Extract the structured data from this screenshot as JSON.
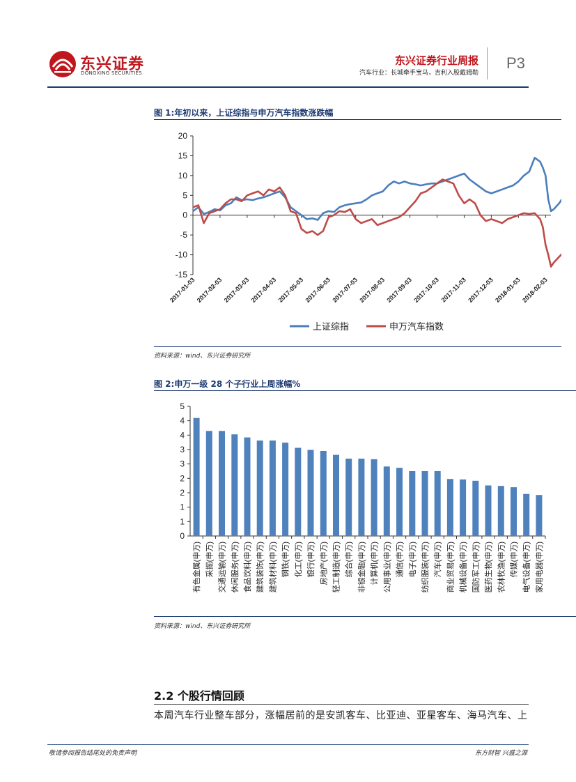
{
  "header": {
    "logo_cn": "东兴证券",
    "logo_en": "DONGXING SECURITIES",
    "report_title": "东兴证券行业周报",
    "report_subtitle": "汽车行业：长城牵手宝马，吉利入股戴姆勒",
    "page_number": "P3"
  },
  "figure1": {
    "title": "图 1:年初以来，上证综指与申万汽车指数涨跌幅",
    "source": "资料来源：wind、东兴证券研究所"
  },
  "figure2": {
    "title": "图 2:申万一级 28 个子行业上周涨幅%",
    "source": "资料来源：wind、东兴证券研究所"
  },
  "section": {
    "title": "2.2 个股行情回顾",
    "body": "本周汽车行业整车部分，涨幅居前的是安凯客车、比亚迪、亚星客车、海马汽车、上"
  },
  "footer": {
    "left": "敬请参阅报告结尾处的免责声明",
    "right": "东方财智 兴盛之源"
  },
  "colors": {
    "brand_red": "#c0161d",
    "navy": "#1f3b73",
    "series_blue": "#4a7ebb",
    "series_red": "#be4b48",
    "bar_blue": "#4f81bd"
  },
  "chart_data": [
    {
      "type": "line",
      "x_ticks": [
        "2017-01-03",
        "2017-02-03",
        "2017-03-03",
        "2017-04-03",
        "2017-05-03",
        "2017-06-03",
        "2017-07-03",
        "2017-08-03",
        "2017-09-03",
        "2017-10-03",
        "2017-11-03",
        "2017-12-03",
        "2018-01-03",
        "2018-02-03"
      ],
      "ylim": [
        -15,
        20
      ],
      "y_ticks": [
        20,
        15,
        10,
        5,
        0,
        -5,
        -10,
        -15
      ],
      "legend": "bottom",
      "series": [
        {
          "name": "上证综指",
          "color": "#4a7ebb",
          "points": [
            [
              0,
              1
            ],
            [
              0.2,
              2
            ],
            [
              0.4,
              0.3
            ],
            [
              0.6,
              0.8
            ],
            [
              0.8,
              1.5
            ],
            [
              1.0,
              1.2
            ],
            [
              1.2,
              2.5
            ],
            [
              1.4,
              3.0
            ],
            [
              1.6,
              4.5
            ],
            [
              1.8,
              3.8
            ],
            [
              2.0,
              4.0
            ],
            [
              2.2,
              3.8
            ],
            [
              2.4,
              4.2
            ],
            [
              2.6,
              4.5
            ],
            [
              2.8,
              5.0
            ],
            [
              3.0,
              5.5
            ],
            [
              3.2,
              6.0
            ],
            [
              3.4,
              4.5
            ],
            [
              3.6,
              2.0
            ],
            [
              3.8,
              1.0
            ],
            [
              4.0,
              0.0
            ],
            [
              4.2,
              -1.0
            ],
            [
              4.4,
              -0.8
            ],
            [
              4.6,
              -1.2
            ],
            [
              4.8,
              0.5
            ],
            [
              5.0,
              1.0
            ],
            [
              5.2,
              0.8
            ],
            [
              5.4,
              2.0
            ],
            [
              5.6,
              2.5
            ],
            [
              5.8,
              2.8
            ],
            [
              6.0,
              3.0
            ],
            [
              6.2,
              3.2
            ],
            [
              6.4,
              4.0
            ],
            [
              6.6,
              5.0
            ],
            [
              6.8,
              5.5
            ],
            [
              7.0,
              6.0
            ],
            [
              7.2,
              7.5
            ],
            [
              7.4,
              8.5
            ],
            [
              7.6,
              8.0
            ],
            [
              7.8,
              8.5
            ],
            [
              8.0,
              8.0
            ],
            [
              8.2,
              7.8
            ],
            [
              8.4,
              7.5
            ],
            [
              8.6,
              7.8
            ],
            [
              8.8,
              8.0
            ],
            [
              9.0,
              8.0
            ],
            [
              9.2,
              8.5
            ],
            [
              9.4,
              9.0
            ],
            [
              9.6,
              9.5
            ],
            [
              9.8,
              10.0
            ],
            [
              10.0,
              10.5
            ],
            [
              10.2,
              9.0
            ],
            [
              10.4,
              8.0
            ],
            [
              10.6,
              7.0
            ],
            [
              10.8,
              6.0
            ],
            [
              11.0,
              5.5
            ],
            [
              11.2,
              6.0
            ],
            [
              11.4,
              6.5
            ],
            [
              11.6,
              7.0
            ],
            [
              11.8,
              7.5
            ],
            [
              12.0,
              8.5
            ],
            [
              12.2,
              10.0
            ],
            [
              12.4,
              11.0
            ],
            [
              12.6,
              14.5
            ],
            [
              12.8,
              13.5
            ],
            [
              12.9,
              12.0
            ],
            [
              13.0,
              10.0
            ],
            [
              13.1,
              4.0
            ],
            [
              13.2,
              1.0
            ],
            [
              13.3,
              1.5
            ],
            [
              13.5,
              3.0
            ],
            [
              13.8,
              6.0
            ],
            [
              14.0,
              6.0
            ]
          ]
        },
        {
          "name": "申万汽车指数",
          "color": "#be4b48",
          "points": [
            [
              0,
              2
            ],
            [
              0.2,
              2.5
            ],
            [
              0.4,
              -2.0
            ],
            [
              0.6,
              0.5
            ],
            [
              0.8,
              1.0
            ],
            [
              1.0,
              1.5
            ],
            [
              1.2,
              3.0
            ],
            [
              1.4,
              4.0
            ],
            [
              1.6,
              4.0
            ],
            [
              1.8,
              3.5
            ],
            [
              2.0,
              5.0
            ],
            [
              2.2,
              5.5
            ],
            [
              2.4,
              6.0
            ],
            [
              2.6,
              5.0
            ],
            [
              2.8,
              6.5
            ],
            [
              3.0,
              6.0
            ],
            [
              3.2,
              7.0
            ],
            [
              3.4,
              5.0
            ],
            [
              3.6,
              1.0
            ],
            [
              3.8,
              0.5
            ],
            [
              4.0,
              -3.5
            ],
            [
              4.2,
              -4.5
            ],
            [
              4.4,
              -4.0
            ],
            [
              4.6,
              -5.0
            ],
            [
              4.8,
              -4.0
            ],
            [
              5.0,
              -0.5
            ],
            [
              5.2,
              0.0
            ],
            [
              5.4,
              1.0
            ],
            [
              5.6,
              0.8
            ],
            [
              5.8,
              1.5
            ],
            [
              6.0,
              -1.0
            ],
            [
              6.2,
              -2.0
            ],
            [
              6.4,
              -1.5
            ],
            [
              6.6,
              -1.0
            ],
            [
              6.8,
              -2.5
            ],
            [
              7.0,
              -2.0
            ],
            [
              7.2,
              -1.5
            ],
            [
              7.4,
              -1.0
            ],
            [
              7.6,
              -0.5
            ],
            [
              7.8,
              0.5
            ],
            [
              8.0,
              2.0
            ],
            [
              8.2,
              3.5
            ],
            [
              8.4,
              5.5
            ],
            [
              8.6,
              6.0
            ],
            [
              8.8,
              7.0
            ],
            [
              9.0,
              8.0
            ],
            [
              9.2,
              9.0
            ],
            [
              9.4,
              8.5
            ],
            [
              9.6,
              8.0
            ],
            [
              9.8,
              5.0
            ],
            [
              10.0,
              3.0
            ],
            [
              10.2,
              4.0
            ],
            [
              10.4,
              3.0
            ],
            [
              10.6,
              0.0
            ],
            [
              10.8,
              -1.5
            ],
            [
              11.0,
              -1.0
            ],
            [
              11.2,
              -1.5
            ],
            [
              11.4,
              -2.0
            ],
            [
              11.6,
              -1.0
            ],
            [
              11.8,
              -0.5
            ],
            [
              12.0,
              0.0
            ],
            [
              12.2,
              0.5
            ],
            [
              12.4,
              0.3
            ],
            [
              12.6,
              0.5
            ],
            [
              12.8,
              -1.0
            ],
            [
              12.9,
              -3.0
            ],
            [
              13.0,
              -7.5
            ],
            [
              13.1,
              -10.0
            ],
            [
              13.2,
              -13.0
            ],
            [
              13.3,
              -12.0
            ],
            [
              13.5,
              -10.5
            ],
            [
              13.8,
              -8.5
            ],
            [
              14.0,
              -8.5
            ]
          ]
        }
      ]
    },
    {
      "type": "bar",
      "ylim": [
        0,
        5
      ],
      "y_ticks": [
        "5",
        "4",
        "4",
        "3",
        "3",
        "2",
        "2",
        "1",
        "1",
        "0"
      ],
      "categories": [
        "有色金属(申万)",
        "采掘(申万)",
        "交通运输(申万)",
        "休闲服务(申万)",
        "食品饮料(申万)",
        "建筑装饰(申万)",
        "建筑材料(申万)",
        "钢铁(申万)",
        "化工(申万)",
        "银行(申万)",
        "房地产(申万)",
        "轻工制造(申万)",
        "综合(申万)",
        "非银金融(申万)",
        "计算机(申万)",
        "公用事业(申万)",
        "通信(申万)",
        "电子(申万)",
        "纺织服装(申万)",
        "汽车(申万)",
        "商业贸易(申万)",
        "机械设备(申万)",
        "国防军工(申万)",
        "医药生物(申万)",
        "农林牧渔(申万)",
        "传媒(申万)",
        "电气设备(申万)",
        "家用电器(申万)"
      ],
      "values": [
        4.55,
        4.05,
        4.05,
        3.92,
        3.8,
        3.68,
        3.68,
        3.6,
        3.4,
        3.32,
        3.28,
        3.13,
        2.98,
        2.98,
        2.96,
        2.68,
        2.63,
        2.5,
        2.5,
        2.5,
        2.2,
        2.18,
        2.13,
        1.95,
        1.93,
        1.88,
        1.62,
        1.58
      ]
    }
  ]
}
